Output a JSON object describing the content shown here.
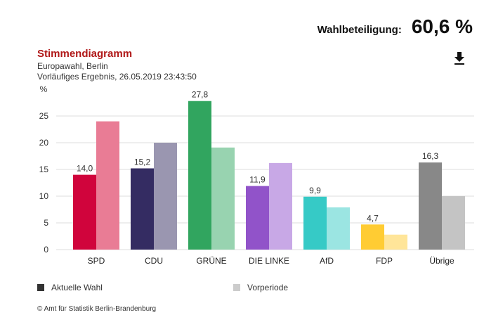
{
  "turnout": {
    "label": "Wahlbeteiligung:",
    "value": "60,6 %"
  },
  "header": {
    "title": "Stimmendiagramm",
    "subtitle": "Europawahl, Berlin",
    "status": "Vorläufiges Ergebnis, 26.05.2019 23:43:50"
  },
  "icons": {
    "download": "download-icon"
  },
  "legend": {
    "current": {
      "label": "Aktuelle Wahl",
      "color": "#333333"
    },
    "previous": {
      "label": "Vorperiode",
      "color": "#cccccc"
    }
  },
  "footer": {
    "copyright": "© Amt für Statistik Berlin-Brandenburg"
  },
  "chart_data": {
    "type": "bar",
    "ylabel": "%",
    "ylim": [
      0,
      30
    ],
    "yticks": [
      0,
      5,
      10,
      15,
      20,
      25
    ],
    "grid": true,
    "categories": [
      "SPD",
      "CDU",
      "GRÜNE",
      "DIE LINKE",
      "AfD",
      "FDP",
      "Übrige"
    ],
    "series": [
      {
        "name": "Aktuelle Wahl",
        "values": [
          14.0,
          15.2,
          27.8,
          11.9,
          9.9,
          4.7,
          16.3
        ],
        "labels": [
          "14,0",
          "15,2",
          "27,8",
          "11,9",
          "9,9",
          "4,7",
          "16,3"
        ],
        "colors": [
          "#d0043c",
          "#342c62",
          "#31a55f",
          "#9153c9",
          "#36cac6",
          "#ffcc33",
          "#888888"
        ]
      },
      {
        "name": "Vorperiode",
        "values": [
          24.0,
          20.0,
          19.1,
          16.2,
          7.9,
          2.8,
          10.0
        ],
        "colors": [
          "#e97c95",
          "#9a96b0",
          "#98d3b0",
          "#c8a8e6",
          "#9be5e2",
          "#ffe599",
          "#c4c4c4"
        ]
      }
    ]
  }
}
